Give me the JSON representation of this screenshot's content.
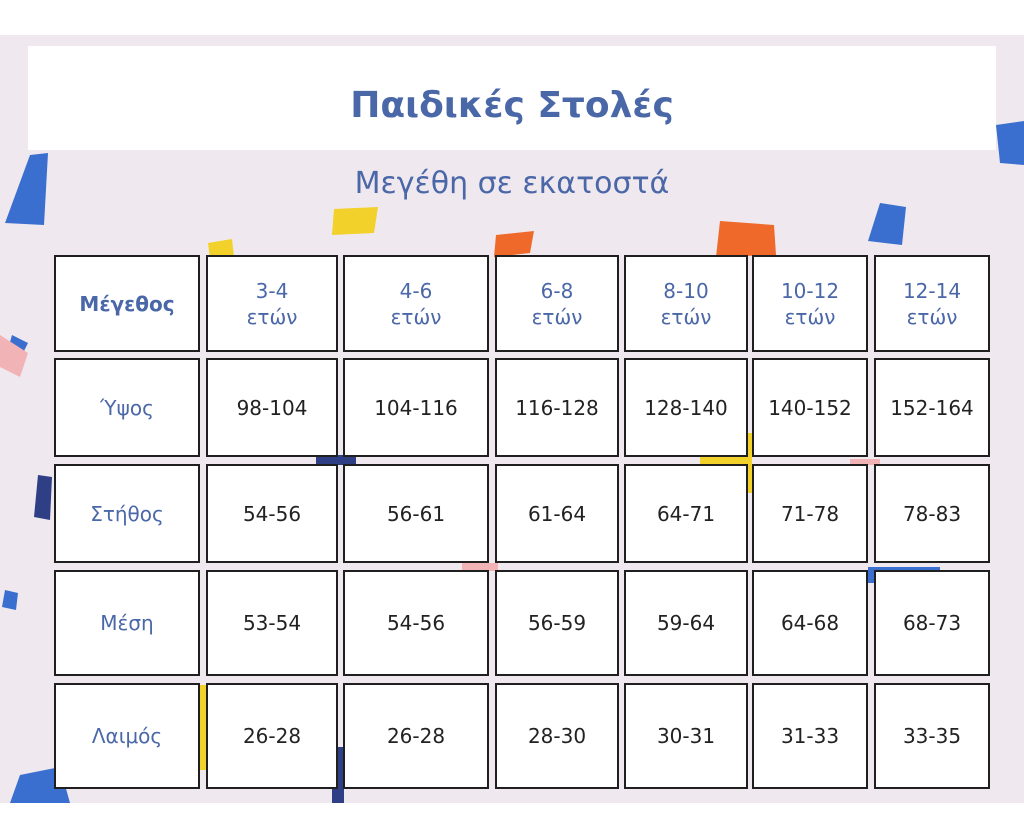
{
  "title": "Παιδικές Στολές",
  "subtitle": "Μεγέθη σε εκατοστά",
  "table": {
    "corner": "Μέγεθος",
    "columns": [
      "3-4\nετών",
      "4-6\nετών",
      "6-8\nετών",
      "8-10\nετών",
      "10-12\nετών",
      "12-14\nετών"
    ],
    "rows": [
      {
        "label": "Ύψος",
        "values": [
          "98-104",
          "104-116",
          "116-128",
          "128-140",
          "140-152",
          "152-164"
        ]
      },
      {
        "label": "Στήθος",
        "values": [
          "54-56",
          "56-61",
          "61-64",
          "64-71",
          "71-78",
          "78-83"
        ]
      },
      {
        "label": "Μέση",
        "values": [
          "53-54",
          "54-56",
          "56-59",
          "59-64",
          "64-68",
          "68-73"
        ]
      },
      {
        "label": "Λαιμός",
        "values": [
          "26-28",
          "26-28",
          "28-30",
          "30-31",
          "31-33",
          "33-35"
        ]
      }
    ]
  },
  "colors": {
    "title": "#4a67a8",
    "background": "#f0e8ef",
    "blue": "#3a6fcf",
    "navy": "#2f3f86",
    "orange": "#ef6a2a",
    "yellow": "#f2d12a",
    "pink": "#f2b3b6"
  }
}
